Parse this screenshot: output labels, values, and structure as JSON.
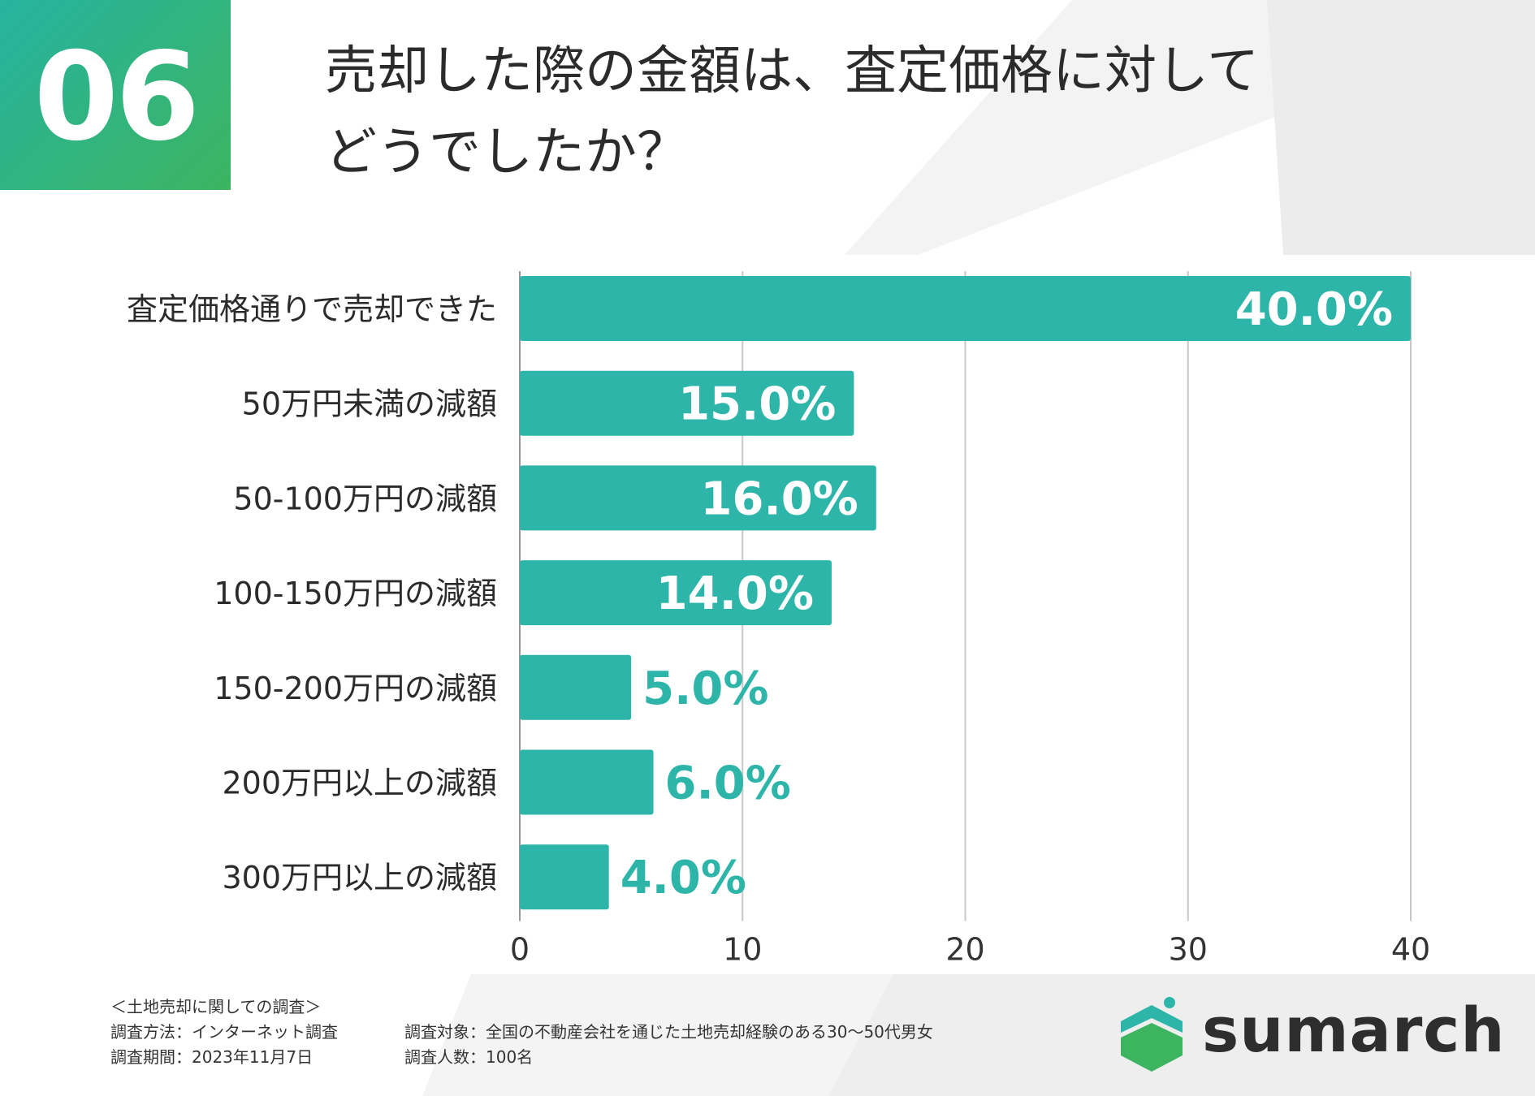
{
  "badge": {
    "number": "06"
  },
  "title": {
    "line1": "売却した際の金額は、査定価格に対して",
    "line2": "どうでしたか？"
  },
  "colors": {
    "bar": "#2eb5a9",
    "label_outside": "#2eb5a9",
    "label_inside": "#ffffff",
    "grid": "#c8c8c8",
    "badge_start": "#26b3a0",
    "badge_end": "#3cb460"
  },
  "chart_data": {
    "type": "bar",
    "orientation": "horizontal",
    "categories": [
      "査定価格通りで売却できた",
      "50万円未満の減額",
      "50-100万円の減額",
      "100-150万円の減額",
      "150-200万円の減額",
      "200万円以上の減額",
      "300万円以上の減額"
    ],
    "values": [
      40.0,
      15.0,
      16.0,
      14.0,
      5.0,
      6.0,
      4.0
    ],
    "value_labels": [
      "40.0%",
      "15.0%",
      "16.0%",
      "14.0%",
      "5.0%",
      "6.0%",
      "4.0%"
    ],
    "xlim": [
      0,
      40
    ],
    "xticks": [
      "0",
      "10",
      "20",
      "30",
      "40"
    ],
    "title": "売却した際の金額は、査定価格に対してどうでしたか？",
    "xlabel": "",
    "ylabel": "",
    "grid": true
  },
  "footer": {
    "survey_name": "＜土地売却に関しての調査＞",
    "method": "調査方法：インターネット調査",
    "target": "調査対象：全国の不動産会社を通じた土地売却経験のある30〜50代男女",
    "period": "調査期間：2023年11月7日",
    "count": "調査人数：100名"
  },
  "logo": {
    "text": "sumarch",
    "icon": "house-logo-icon"
  }
}
